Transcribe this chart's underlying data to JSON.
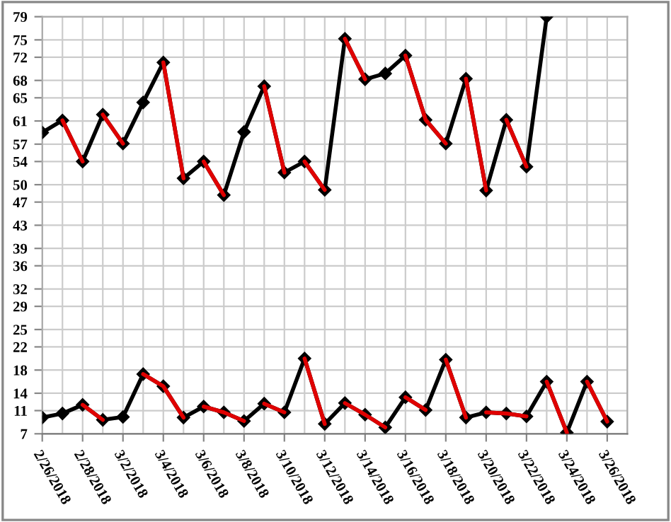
{
  "chart_data": {
    "type": "line",
    "x": [
      "2018-02-26",
      "2018-02-27",
      "2018-02-28",
      "2018-03-01",
      "2018-03-02",
      "2018-03-03",
      "2018-03-04",
      "2018-03-05",
      "2018-03-06",
      "2018-03-07",
      "2018-03-08",
      "2018-03-09",
      "2018-03-10",
      "2018-03-11",
      "2018-03-12",
      "2018-03-13",
      "2018-03-14",
      "2018-03-15",
      "2018-03-16",
      "2018-03-17",
      "2018-03-18",
      "2018-03-19",
      "2018-03-20",
      "2018-03-21",
      "2018-03-22",
      "2018-03-23",
      "2018-03-24",
      "2018-03-25",
      "2018-03-26"
    ],
    "series": [
      {
        "color": "#000000",
        "marker": "diamond",
        "values": [
          59.0,
          61.1,
          54.0,
          62.1,
          57.1,
          64.2,
          71.1,
          51.1,
          54.0,
          48.2,
          59.1,
          67.0,
          52.1,
          54.0,
          49.1,
          75.2,
          68.2,
          69.2,
          72.3,
          61.2,
          57.1,
          68.3,
          49.0,
          61.2,
          53.1,
          79.0,
          null,
          null,
          null
        ]
      },
      {
        "color": "#000000",
        "marker": "diamond",
        "values": [
          9.8,
          10.5,
          12.0,
          9.4,
          9.9,
          17.3,
          15.2,
          9.8,
          11.7,
          10.7,
          9.2,
          12.2,
          10.7,
          20.0,
          8.7,
          12.3,
          10.3,
          8.1,
          13.3,
          11.1,
          19.8,
          9.8,
          10.7,
          10.5,
          10.0,
          16.0,
          7.2,
          16.0,
          9.1
        ]
      },
      {
        "color": "#e00000",
        "marker": "none",
        "x": [
          "2018-02-27",
          "2018-02-28"
        ],
        "values": [
          61.1,
          54.0
        ]
      },
      {
        "color": "#e00000",
        "marker": "none",
        "x": [
          "2018-03-01",
          "2018-03-02"
        ],
        "values": [
          62.1,
          57.1
        ]
      },
      {
        "color": "#e00000",
        "marker": "none",
        "x": [
          "2018-03-04",
          "2018-03-05"
        ],
        "values": [
          71.1,
          51.1
        ]
      },
      {
        "color": "#e00000",
        "marker": "none",
        "x": [
          "2018-03-06",
          "2018-03-07"
        ],
        "values": [
          54.0,
          48.2
        ]
      },
      {
        "color": "#e00000",
        "marker": "none",
        "x": [
          "2018-03-09",
          "2018-03-10"
        ],
        "values": [
          67.0,
          52.1
        ]
      },
      {
        "color": "#e00000",
        "marker": "none",
        "x": [
          "2018-03-11",
          "2018-03-12"
        ],
        "values": [
          54.0,
          49.1
        ]
      },
      {
        "color": "#e00000",
        "marker": "none",
        "x": [
          "2018-03-13",
          "2018-03-14"
        ],
        "values": [
          75.2,
          68.2
        ]
      },
      {
        "color": "#e00000",
        "marker": "none",
        "x": [
          "2018-03-16",
          "2018-03-17",
          "2018-03-18"
        ],
        "values": [
          72.3,
          61.2,
          57.1
        ]
      },
      {
        "color": "#e00000",
        "marker": "none",
        "x": [
          "2018-03-19",
          "2018-03-20"
        ],
        "values": [
          68.3,
          49.0
        ]
      },
      {
        "color": "#e00000",
        "marker": "none",
        "x": [
          "2018-03-21",
          "2018-03-22"
        ],
        "values": [
          61.2,
          53.1
        ]
      },
      {
        "color": "#e00000",
        "marker": "none",
        "x": [
          "2018-02-28",
          "2018-03-01"
        ],
        "values": [
          12.0,
          9.4
        ]
      },
      {
        "color": "#e00000",
        "marker": "none",
        "x": [
          "2018-03-03",
          "2018-03-04",
          "2018-03-05"
        ],
        "values": [
          17.3,
          15.2,
          9.8
        ]
      },
      {
        "color": "#e00000",
        "marker": "none",
        "x": [
          "2018-03-06",
          "2018-03-07",
          "2018-03-08"
        ],
        "values": [
          11.7,
          10.7,
          9.2
        ]
      },
      {
        "color": "#e00000",
        "marker": "none",
        "x": [
          "2018-03-09",
          "2018-03-10"
        ],
        "values": [
          12.2,
          10.7
        ]
      },
      {
        "color": "#e00000",
        "marker": "none",
        "x": [
          "2018-03-11",
          "2018-03-12"
        ],
        "values": [
          20.0,
          8.7
        ]
      },
      {
        "color": "#e00000",
        "marker": "none",
        "x": [
          "2018-03-13",
          "2018-03-14",
          "2018-03-15"
        ],
        "values": [
          12.3,
          10.3,
          8.1
        ]
      },
      {
        "color": "#e00000",
        "marker": "none",
        "x": [
          "2018-03-16",
          "2018-03-17"
        ],
        "values": [
          13.3,
          11.1
        ]
      },
      {
        "color": "#e00000",
        "marker": "none",
        "x": [
          "2018-03-18",
          "2018-03-19"
        ],
        "values": [
          19.8,
          9.8
        ]
      },
      {
        "color": "#e00000",
        "marker": "none",
        "x": [
          "2018-03-20",
          "2018-03-21",
          "2018-03-22"
        ],
        "values": [
          10.7,
          10.5,
          10.0
        ]
      },
      {
        "color": "#e00000",
        "marker": "none",
        "x": [
          "2018-03-23",
          "2018-03-24"
        ],
        "values": [
          16.0,
          7.2
        ]
      },
      {
        "color": "#e00000",
        "marker": "none",
        "x": [
          "2018-03-25",
          "2018-03-26"
        ],
        "values": [
          16.0,
          9.1
        ]
      }
    ],
    "xlim": [
      "2018-02-26",
      "2018-03-27"
    ],
    "xticks": [
      {
        "value": "2018-02-26",
        "label": "2/26/2018"
      },
      {
        "value": "2018-02-28",
        "label": "2/28/2018"
      },
      {
        "value": "2018-03-02",
        "label": "3/2/2018"
      },
      {
        "value": "2018-03-04",
        "label": "3/4/2018"
      },
      {
        "value": "2018-03-06",
        "label": "3/6/2018"
      },
      {
        "value": "2018-03-08",
        "label": "3/8/2018"
      },
      {
        "value": "2018-03-10",
        "label": "3/10/2018"
      },
      {
        "value": "2018-03-12",
        "label": "3/12/2018"
      },
      {
        "value": "2018-03-14",
        "label": "3/14/2018"
      },
      {
        "value": "2018-03-16",
        "label": "3/16/2018"
      },
      {
        "value": "2018-03-18",
        "label": "3/18/2018"
      },
      {
        "value": "2018-03-20",
        "label": "3/20/2018"
      },
      {
        "value": "2018-03-22",
        "label": "3/22/2018"
      },
      {
        "value": "2018-03-24",
        "label": "3/24/2018"
      },
      {
        "value": "2018-03-26",
        "label": "3/26/2018"
      }
    ],
    "ylim": [
      7,
      79
    ],
    "yticks": [
      7,
      11,
      14,
      18,
      22,
      25,
      29,
      32,
      36,
      39,
      43,
      47,
      50,
      54,
      57,
      61,
      65,
      68,
      72,
      75,
      79
    ],
    "grid": true,
    "line_style": "solid",
    "legend": false
  }
}
